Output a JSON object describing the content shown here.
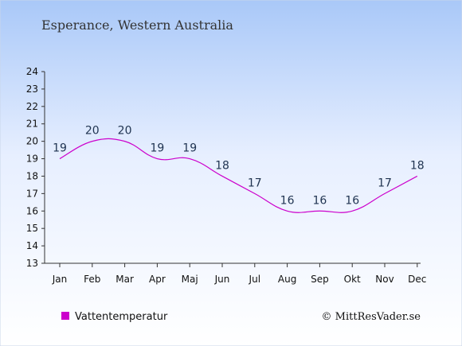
{
  "chart_data": {
    "type": "line",
    "title": "Esperance, Western Australia",
    "categories": [
      "Jan",
      "Feb",
      "Mar",
      "Apr",
      "Maj",
      "Jun",
      "Jul",
      "Aug",
      "Sep",
      "Okt",
      "Nov",
      "Dec"
    ],
    "series": [
      {
        "name": "Vattentemperatur",
        "values": [
          19,
          20,
          20,
          19,
          19,
          18,
          17,
          16,
          16,
          16,
          17,
          18
        ]
      }
    ],
    "ylim": [
      13,
      24
    ],
    "yticks": [
      13,
      14,
      15,
      16,
      17,
      18,
      19,
      20,
      21,
      22,
      23,
      24
    ],
    "grid": false,
    "legend_position": "bottom-left",
    "line_color": "#cc00cc",
    "credit": "© MittResVader.se"
  }
}
